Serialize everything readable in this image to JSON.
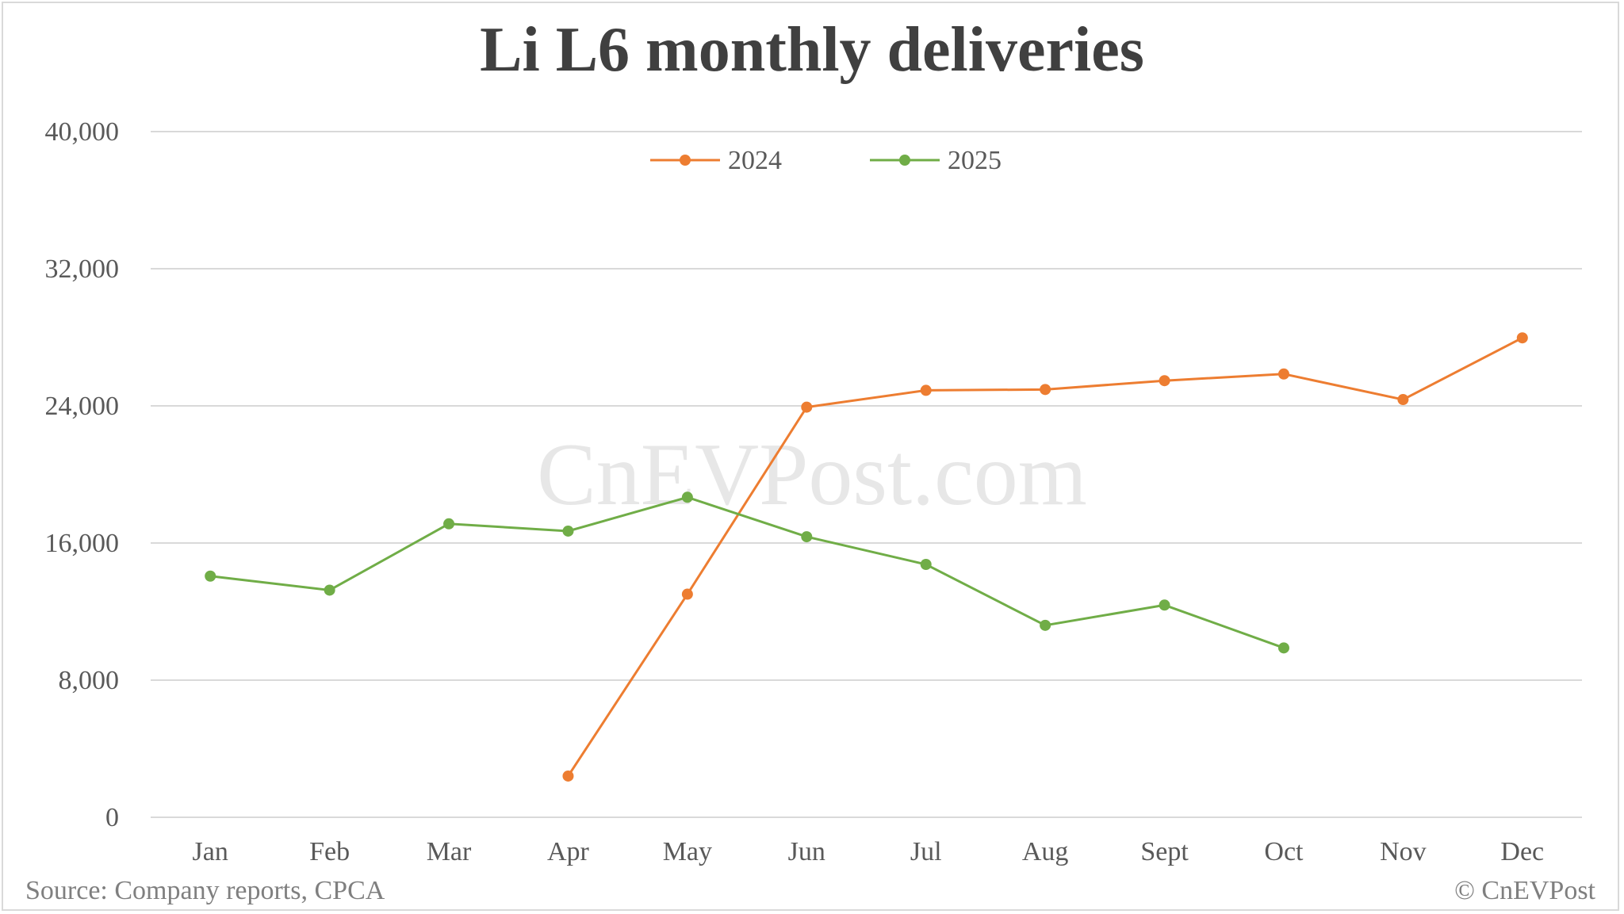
{
  "chart_data": {
    "type": "line",
    "title": "Li L6 monthly deliveries",
    "categories": [
      "Jan",
      "Feb",
      "Mar",
      "Apr",
      "May",
      "Jun",
      "Jul",
      "Aug",
      "Sept",
      "Oct",
      "Nov",
      "Dec"
    ],
    "series": [
      {
        "name": "2024",
        "color": "#ed7d31",
        "values": [
          null,
          null,
          null,
          2407,
          13016,
          23927,
          24905,
          24955,
          25470,
          25859,
          24368,
          27967
        ]
      },
      {
        "name": "2025",
        "color": "#70ad47",
        "values": [
          14069,
          13250,
          17119,
          16696,
          18668,
          16367,
          14752,
          11198,
          12380,
          9880,
          null,
          null
        ]
      }
    ],
    "yticks": [
      "0",
      "8,000",
      "16,000",
      "24,000",
      "32,000",
      "40,000"
    ],
    "ylim": [
      0,
      40000
    ],
    "grid": true,
    "legend_position": "top-center"
  },
  "watermark": "CnEVPost.com",
  "footer": {
    "source": "Source: Company reports, CPCA",
    "credit": "© CnEVPost"
  }
}
